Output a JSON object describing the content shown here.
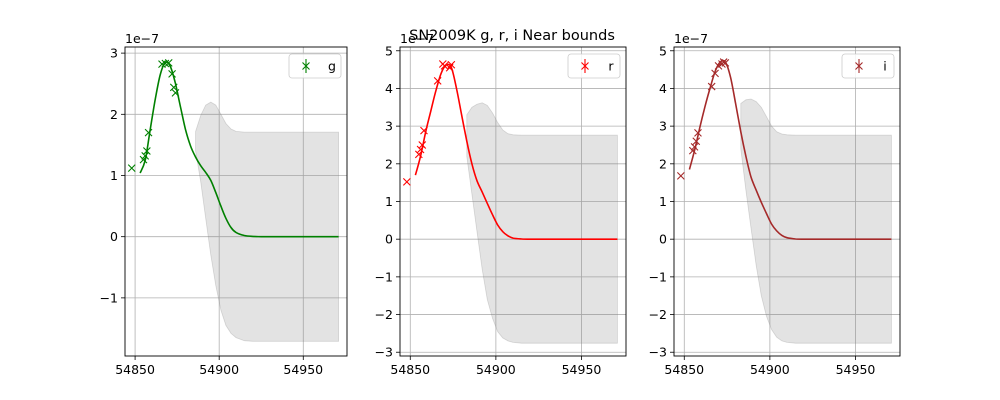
{
  "figure_title": "SN2009K  g, r, i Near bounds",
  "chart_data": [
    {
      "type": "line",
      "band": "g",
      "color": "#008000",
      "offset_label": "1e−7",
      "xlim": [
        54844,
        54976
      ],
      "ylim": [
        -1.95,
        3.1
      ],
      "xticks": [
        54850,
        54900,
        54950
      ],
      "xtick_labels": [
        "54850",
        "54900",
        "54950"
      ],
      "yticks": [
        -1,
        0,
        1,
        2,
        3
      ],
      "ytick_labels": [
        "−1",
        "0",
        "1",
        "2",
        "3"
      ],
      "grid": true,
      "legend": {
        "label": "g",
        "position": "top-right"
      },
      "observations": {
        "x": [
          54848,
          54855,
          54856,
          54857,
          54858,
          54866,
          54868,
          54870,
          54872,
          54873,
          54874
        ],
        "y": [
          1.12,
          1.26,
          1.32,
          1.4,
          1.7,
          2.82,
          2.83,
          2.84,
          2.66,
          2.44,
          2.35
        ]
      },
      "model": {
        "x": [
          54853,
          54856,
          54859,
          54862,
          54865,
          54868,
          54871,
          54874,
          54877,
          54880,
          54883,
          54886,
          54889,
          54892,
          54895,
          54898,
          54901,
          54904,
          54907,
          54910,
          54915,
          54920,
          54925,
          54930,
          54940,
          54950,
          54960,
          54971
        ],
        "y": [
          1.04,
          1.25,
          1.75,
          2.25,
          2.65,
          2.85,
          2.78,
          2.5,
          2.12,
          1.75,
          1.48,
          1.3,
          1.16,
          1.05,
          0.92,
          0.72,
          0.5,
          0.3,
          0.15,
          0.07,
          0.02,
          0.005,
          0,
          0,
          0,
          0,
          0,
          0
        ]
      },
      "band_upper": {
        "x": [
          54886,
          54889,
          54892,
          54895,
          54898,
          54901,
          54904,
          54907,
          54910,
          54915,
          54920,
          54925,
          54930,
          54940,
          54950,
          54960,
          54971
        ],
        "y": [
          1.72,
          1.98,
          2.15,
          2.2,
          2.15,
          2.0,
          1.85,
          1.76,
          1.72,
          1.71,
          1.71,
          1.71,
          1.71,
          1.71,
          1.71,
          1.71,
          1.71
        ]
      },
      "band_lower": {
        "x": [
          54886,
          54889,
          54892,
          54895,
          54898,
          54901,
          54904,
          54907,
          54910,
          54915,
          54920,
          54925,
          54930,
          54940,
          54950,
          54960,
          54971
        ],
        "y": [
          1.4,
          0.9,
          0.3,
          -0.3,
          -0.8,
          -1.2,
          -1.45,
          -1.58,
          -1.65,
          -1.7,
          -1.71,
          -1.71,
          -1.71,
          -1.71,
          -1.71,
          -1.71,
          -1.71
        ]
      }
    },
    {
      "type": "line",
      "band": "r",
      "color": "#ff0000",
      "offset_label": "1e−7",
      "xlim": [
        54844,
        54976
      ],
      "ylim": [
        -3.1,
        5.1
      ],
      "xticks": [
        54850,
        54900,
        54950
      ],
      "xtick_labels": [
        "54850",
        "54900",
        "54950"
      ],
      "yticks": [
        -3,
        -2,
        -1,
        0,
        1,
        2,
        3,
        4,
        5
      ],
      "ytick_labels": [
        "−3",
        "−2",
        "−1",
        "0",
        "1",
        "2",
        "3",
        "4",
        "5"
      ],
      "grid": true,
      "legend": {
        "label": "r",
        "position": "top-right"
      },
      "observations": {
        "x": [
          54848,
          54855,
          54856,
          54857,
          54858,
          54866,
          54869,
          54870,
          54873,
          54874
        ],
        "y": [
          1.52,
          2.25,
          2.38,
          2.5,
          2.88,
          4.2,
          4.65,
          4.6,
          4.55,
          4.63
        ]
      },
      "model": {
        "x": [
          54853,
          54856,
          54859,
          54862,
          54865,
          54868,
          54871,
          54874,
          54877,
          54880,
          54883,
          54886,
          54889,
          54892,
          54895,
          54898,
          54901,
          54904,
          54907,
          54910,
          54915,
          54920,
          54925,
          54930,
          54940,
          54950,
          54960,
          54971
        ],
        "y": [
          1.7,
          2.2,
          2.85,
          3.4,
          3.95,
          4.4,
          4.62,
          4.55,
          4.0,
          3.3,
          2.6,
          2.0,
          1.55,
          1.25,
          0.95,
          0.65,
          0.38,
          0.2,
          0.09,
          0.03,
          0.005,
          0,
          0,
          0,
          0,
          0,
          0,
          0
        ]
      },
      "band_upper": {
        "x": [
          54883,
          54886,
          54889,
          54892,
          54895,
          54898,
          54901,
          54904,
          54907,
          54910,
          54915,
          54920,
          54925,
          54930,
          54940,
          54950,
          54960,
          54971
        ],
        "y": [
          3.3,
          3.5,
          3.58,
          3.62,
          3.55,
          3.35,
          3.1,
          2.9,
          2.8,
          2.77,
          2.76,
          2.76,
          2.76,
          2.76,
          2.76,
          2.76,
          2.76,
          2.76
        ]
      },
      "band_lower": {
        "x": [
          54883,
          54886,
          54889,
          54892,
          54895,
          54898,
          54901,
          54904,
          54907,
          54910,
          54915,
          54920,
          54925,
          54930,
          54940,
          54950,
          54960,
          54971
        ],
        "y": [
          2.2,
          1.2,
          0.2,
          -0.8,
          -1.6,
          -2.1,
          -2.45,
          -2.62,
          -2.7,
          -2.74,
          -2.76,
          -2.76,
          -2.76,
          -2.76,
          -2.76,
          -2.76,
          -2.76,
          -2.76
        ]
      }
    },
    {
      "type": "line",
      "band": "i",
      "color": "#a52a2a",
      "offset_label": "1e−7",
      "xlim": [
        54844,
        54976
      ],
      "ylim": [
        -3.1,
        5.1
      ],
      "xticks": [
        54850,
        54900,
        54950
      ],
      "xtick_labels": [
        "54850",
        "54900",
        "54950"
      ],
      "yticks": [
        -3,
        -2,
        -1,
        0,
        1,
        2,
        3,
        4,
        5
      ],
      "ytick_labels": [
        "−3",
        "−2",
        "−1",
        "0",
        "1",
        "2",
        "3",
        "4",
        "5"
      ],
      "grid": true,
      "legend": {
        "label": "i",
        "position": "top-right"
      },
      "observations": {
        "x": [
          54848,
          54855,
          54856,
          54857,
          54858,
          54866,
          54868,
          54870,
          54872,
          54873,
          54874
        ],
        "y": [
          1.68,
          2.35,
          2.45,
          2.6,
          2.82,
          4.05,
          4.4,
          4.6,
          4.65,
          4.7,
          4.68
        ]
      },
      "model": {
        "x": [
          54853,
          54856,
          54859,
          54862,
          54865,
          54868,
          54871,
          54874,
          54877,
          54880,
          54883,
          54886,
          54889,
          54892,
          54895,
          54898,
          54901,
          54904,
          54907,
          54910,
          54915,
          54920,
          54925,
          54930,
          54940,
          54950,
          54960,
          54971
        ],
        "y": [
          1.85,
          2.35,
          2.95,
          3.5,
          4.0,
          4.45,
          4.7,
          4.7,
          4.3,
          3.6,
          2.85,
          2.2,
          1.65,
          1.3,
          0.98,
          0.68,
          0.4,
          0.22,
          0.1,
          0.04,
          0.005,
          0,
          0,
          0,
          0,
          0,
          0,
          0
        ]
      },
      "band_upper": {
        "x": [
          54883,
          54886,
          54889,
          54892,
          54895,
          54898,
          54901,
          54904,
          54907,
          54910,
          54915,
          54920,
          54925,
          54930,
          54940,
          54950,
          54960,
          54971
        ],
        "y": [
          3.6,
          3.7,
          3.72,
          3.65,
          3.5,
          3.25,
          3.0,
          2.85,
          2.79,
          2.77,
          2.76,
          2.76,
          2.76,
          2.76,
          2.76,
          2.76,
          2.76,
          2.76
        ]
      },
      "band_lower": {
        "x": [
          54883,
          54886,
          54889,
          54892,
          54895,
          54898,
          54901,
          54904,
          54907,
          54910,
          54915,
          54920,
          54925,
          54930,
          54940,
          54950,
          54960,
          54971
        ],
        "y": [
          2.4,
          1.3,
          0.3,
          -0.7,
          -1.5,
          -2.05,
          -2.4,
          -2.6,
          -2.7,
          -2.74,
          -2.76,
          -2.76,
          -2.76,
          -2.76,
          -2.76,
          -2.76,
          -2.76,
          -2.76
        ]
      }
    }
  ]
}
